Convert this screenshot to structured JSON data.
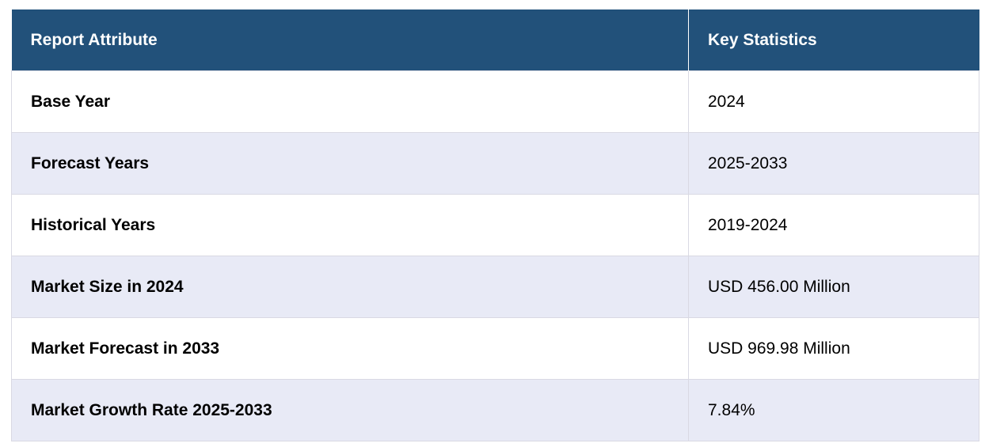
{
  "table": {
    "headers": [
      "Report Attribute",
      "Key Statistics"
    ],
    "rows": [
      {
        "attribute": "Base Year",
        "value": "2024"
      },
      {
        "attribute": "Forecast Years",
        "value": "2025-2033"
      },
      {
        "attribute": "Historical Years",
        "value": "2019-2024"
      },
      {
        "attribute": "Market Size in 2024",
        "value": "USD 456.00 Million"
      },
      {
        "attribute": "Market Forecast in 2033",
        "value": "USD 969.98 Million"
      },
      {
        "attribute": "Market Growth Rate 2025-2033",
        "value": "7.84%"
      }
    ]
  },
  "colors": {
    "header_bg": "#22517a",
    "header_text": "#ffffff",
    "stripe_bg": "#e8eaf6",
    "row_bg": "#ffffff"
  }
}
